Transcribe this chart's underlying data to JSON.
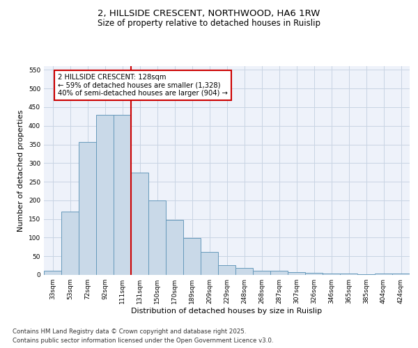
{
  "title_line1": "2, HILLSIDE CRESCENT, NORTHWOOD, HA6 1RW",
  "title_line2": "Size of property relative to detached houses in Ruislip",
  "xlabel": "Distribution of detached houses by size in Ruislip",
  "ylabel": "Number of detached properties",
  "categories": [
    "33sqm",
    "53sqm",
    "72sqm",
    "92sqm",
    "111sqm",
    "131sqm",
    "150sqm",
    "170sqm",
    "189sqm",
    "209sqm",
    "229sqm",
    "248sqm",
    "268sqm",
    "287sqm",
    "307sqm",
    "326sqm",
    "346sqm",
    "365sqm",
    "385sqm",
    "404sqm",
    "424sqm"
  ],
  "values": [
    12,
    170,
    357,
    430,
    430,
    275,
    200,
    148,
    99,
    61,
    27,
    19,
    11,
    11,
    7,
    5,
    4,
    3,
    1,
    4,
    4
  ],
  "bar_color": "#c9d9e8",
  "bar_edge_color": "#6699bb",
  "grid_color": "#c8d4e3",
  "background_color": "#eef2fa",
  "vline_x_index": 5,
  "vline_color": "#cc0000",
  "annotation_line1": "2 HILLSIDE CRESCENT: 128sqm",
  "annotation_line2": "← 59% of detached houses are smaller (1,328)",
  "annotation_line3": "40% of semi-detached houses are larger (904) →",
  "annotation_box_color": "#cc0000",
  "ylim": [
    0,
    560
  ],
  "yticks": [
    0,
    50,
    100,
    150,
    200,
    250,
    300,
    350,
    400,
    450,
    500,
    550
  ],
  "footnote_line1": "Contains HM Land Registry data © Crown copyright and database right 2025.",
  "footnote_line2": "Contains public sector information licensed under the Open Government Licence v3.0.",
  "title_fontsize": 9.5,
  "subtitle_fontsize": 8.5,
  "axis_label_fontsize": 8,
  "tick_fontsize": 6.5,
  "annotation_fontsize": 7.2,
  "footnote_fontsize": 6.2
}
